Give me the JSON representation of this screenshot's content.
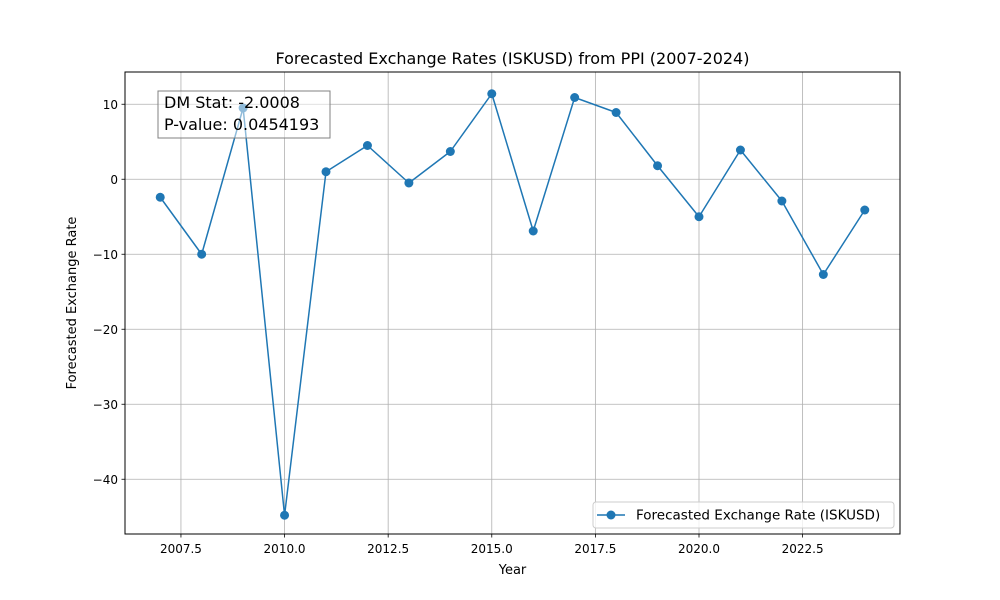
{
  "chart_data": {
    "type": "line",
    "title": "Forecasted Exchange Rates (ISKUSD) from PPI (2007-2024)",
    "xlabel": "Year",
    "ylabel": "Forecasted Exchange Rate",
    "xlim": [
      2006.15,
      2024.85
    ],
    "ylim": [
      -47.3,
      14.3
    ],
    "xticks": [
      2007.5,
      2010.0,
      2012.5,
      2015.0,
      2017.5,
      2020.0,
      2022.5
    ],
    "xtick_labels": [
      "2007.5",
      "2010.0",
      "2012.5",
      "2015.0",
      "2017.5",
      "2020.0",
      "2022.5"
    ],
    "yticks": [
      10,
      0,
      -10,
      -20,
      -30,
      -40
    ],
    "ytick_labels": [
      "10",
      "0",
      "−10",
      "−20",
      "−30",
      "−40"
    ],
    "grid": true,
    "legend_position": "lower-right",
    "series": [
      {
        "name": "Forecasted Exchange Rate (ISKUSD)",
        "color": "#1f77b4",
        "x": [
          2007,
          2008,
          2009,
          2010,
          2011,
          2012,
          2013,
          2014,
          2015,
          2016,
          2017,
          2018,
          2019,
          2020,
          2021,
          2022,
          2023,
          2024
        ],
        "y": [
          -2.4,
          -10.0,
          9.5,
          -44.8,
          1.0,
          4.5,
          -0.5,
          3.7,
          11.4,
          -6.9,
          10.9,
          8.9,
          1.8,
          -5.0,
          3.9,
          -2.9,
          -12.7,
          -4.1
        ]
      }
    ],
    "annotation": {
      "line1": "DM Stat: -2.0008",
      "line2": "P-value: 0.0454193"
    }
  }
}
